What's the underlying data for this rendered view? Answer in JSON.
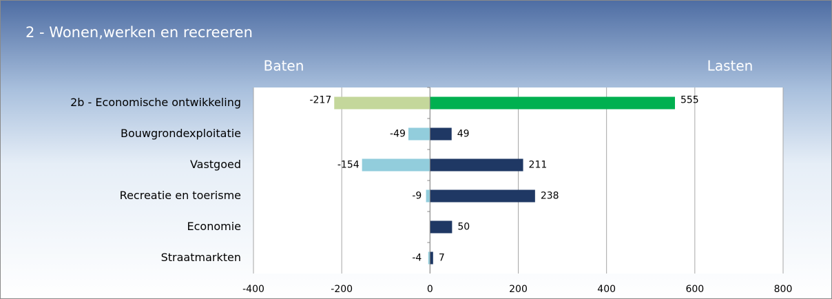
{
  "chart_data": {
    "type": "diverging-bar",
    "title": "2 - Wonen,werken en recreeren",
    "categories": [
      "2b - Economische ontwikkeling",
      "Bouwgrondexploitatie",
      "Vastgoed",
      "Recreatie en toerisme",
      "Economie",
      "Straatmarkten"
    ],
    "series": [
      {
        "name": "Baten",
        "values": [
          -217,
          -49,
          -154,
          -9,
          null,
          -4
        ],
        "colors": [
          "#c4d79b",
          "#92cddc",
          "#92cddc",
          "#92cddc",
          "#92cddc",
          "#92cddc"
        ]
      },
      {
        "name": "Lasten",
        "values": [
          555,
          49,
          211,
          238,
          50,
          7
        ],
        "colors": [
          "#00b050",
          "#1f3864",
          "#1f3864",
          "#1f3864",
          "#1f3864",
          "#1f3864"
        ]
      }
    ],
    "xlim": [
      -400,
      800
    ],
    "xticks": [
      -400,
      -200,
      0,
      200,
      400,
      600,
      800
    ],
    "grid": true
  }
}
